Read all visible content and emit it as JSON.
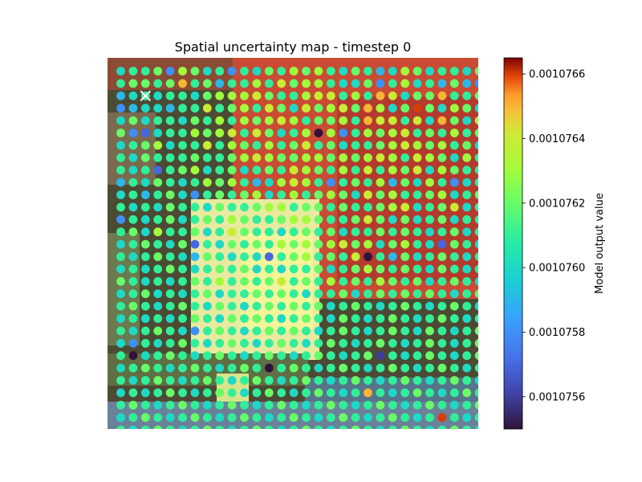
{
  "chart_data": {
    "type": "scatter",
    "title": "Spatial uncertainty map - timestep 0",
    "xlabel": "",
    "ylabel": "",
    "grid": false,
    "axes_visible": false,
    "background": "aerial image",
    "marker": {
      "shape": "circle",
      "colormap": "turbo"
    },
    "grid_points": {
      "rows": 30,
      "cols": 30,
      "x_range": [
        0,
        29
      ],
      "y_range": [
        0,
        29
      ]
    },
    "highlight_marker": {
      "shape": "x",
      "color": "#ffffff",
      "col": 2,
      "row": 2
    },
    "colorbar": {
      "label": "Model output value",
      "vmin": 0.0010755,
      "vmax": 0.00107665,
      "ticks": [
        0.0010756,
        0.0010758,
        0.001076,
        0.0010762,
        0.0010764,
        0.0010766
      ],
      "tick_labels": [
        "0.0010756",
        "0.0010758",
        "0.0010760",
        "0.0010762",
        "0.0010764",
        "0.0010766"
      ]
    },
    "value_rows": [
      [
        0.001076,
        0.0010761,
        0.0010761,
        0.0010762,
        0.0010758,
        0.0010763,
        0.0010762,
        0.001076,
        0.0010761,
        0.0010758,
        0.0010761,
        0.001076,
        0.0010762,
        0.0010761,
        0.0010763,
        0.0010762,
        0.0010763,
        0.0010761,
        0.001076,
        0.0010762,
        0.0010761,
        0.0010759,
        0.001076,
        0.0010763,
        0.0010762,
        0.001076,
        0.0010761,
        0.0010761,
        0.001076,
        0.0010762
      ],
      [
        0.0010761,
        0.0010762,
        0.0010762,
        0.0010761,
        0.0010762,
        0.0010765,
        0.0010761,
        0.0010762,
        0.0010759,
        0.0010761,
        0.0010761,
        0.0010763,
        0.0010761,
        0.0010764,
        0.0010762,
        0.0010763,
        0.0010763,
        0.0010761,
        0.001076,
        0.001076,
        0.0010762,
        0.0010758,
        0.0010761,
        0.0010763,
        0.001076,
        0.0010761,
        0.0010759,
        0.0010762,
        0.0010759,
        0.0010758
      ],
      [
        0.0010759,
        0.001076,
        0.0010761,
        0.001076,
        0.0010761,
        0.0010761,
        0.001076,
        0.0010762,
        0.0010763,
        0.0010763,
        0.0010763,
        0.0010764,
        0.0010762,
        0.0010761,
        0.0010761,
        0.0010763,
        0.0010764,
        0.0010764,
        0.0010761,
        0.0010763,
        0.0010761,
        0.0010765,
        0.0010764,
        0.001076,
        0.0010762,
        0.0010762,
        0.0010765,
        0.0010761,
        0.0010761,
        0.0010762
      ],
      [
        0.0010758,
        0.0010759,
        0.001076,
        0.001076,
        0.0010759,
        0.0010761,
        0.0010761,
        0.0010764,
        0.0010761,
        0.0010762,
        0.0010763,
        0.0010761,
        0.0010764,
        0.0010762,
        0.001076,
        0.0010764,
        0.0010762,
        0.0010763,
        0.0010764,
        0.0010762,
        0.0010765,
        0.0010763,
        0.001076,
        0.0010762,
        0.0010766,
        0.0010762,
        0.001076,
        0.0010763,
        0.0010762,
        0.001076
      ],
      [
        0.001076,
        0.0010762,
        0.001076,
        0.0010761,
        0.0010761,
        0.001076,
        0.0010762,
        0.0010761,
        0.0010763,
        0.0010761,
        0.0010763,
        0.0010762,
        0.0010763,
        0.0010764,
        0.0010763,
        0.0010761,
        0.0010762,
        0.0010762,
        0.0010763,
        0.0010761,
        0.0010765,
        0.0010764,
        0.0010764,
        0.0010761,
        0.0010764,
        0.001076,
        0.0010765,
        0.0010762,
        0.001076,
        0.0010763
      ],
      [
        0.0010762,
        0.0010758,
        0.0010757,
        0.001076,
        0.0010761,
        0.0010761,
        0.0010763,
        0.0010762,
        0.0010763,
        0.0010764,
        0.0010761,
        0.0010764,
        0.0010762,
        0.001076,
        0.0010761,
        0.0010763,
        0.0010755,
        0.0010763,
        0.0010758,
        0.0010761,
        0.0010763,
        0.0010762,
        0.0010763,
        0.0010764,
        0.0010761,
        0.0010762,
        0.0010761,
        0.0010763,
        0.0010761,
        0.0010762
      ],
      [
        0.001076,
        0.0010761,
        0.0010762,
        0.0010763,
        0.001076,
        0.0010761,
        0.0010761,
        0.0010764,
        0.0010761,
        0.0010763,
        0.0010762,
        0.0010761,
        0.0010763,
        0.0010761,
        0.0010762,
        0.0010764,
        0.0010761,
        0.0010762,
        0.001076,
        0.0010761,
        0.0010761,
        0.0010762,
        0.0010763,
        0.0010764,
        0.0010763,
        0.0010762,
        0.0010763,
        0.0010761,
        0.0010762,
        0.001076
      ],
      [
        0.0010761,
        0.001076,
        0.0010762,
        0.0010761,
        0.0010761,
        0.0010761,
        0.0010762,
        0.0010761,
        0.0010761,
        0.0010762,
        0.0010763,
        0.0010764,
        0.0010763,
        0.0010762,
        0.0010762,
        0.0010763,
        0.0010763,
        0.0010762,
        0.0010763,
        0.0010762,
        0.0010763,
        0.0010764,
        0.0010763,
        0.0010761,
        0.0010764,
        0.0010763,
        0.0010762,
        0.001076,
        0.0010763,
        0.0010761
      ],
      [
        0.0010761,
        0.001076,
        0.0010761,
        0.0010757,
        0.0010761,
        0.0010762,
        0.0010763,
        0.001076,
        0.0010761,
        0.0010762,
        0.001076,
        0.0010761,
        0.0010762,
        0.0010761,
        0.0010764,
        0.0010763,
        0.0010762,
        0.0010761,
        0.0010763,
        0.0010761,
        0.0010764,
        0.0010761,
        0.0010763,
        0.0010762,
        0.0010764,
        0.001076,
        0.0010763,
        0.0010762,
        0.0010761,
        0.0010761
      ],
      [
        0.0010759,
        0.0010761,
        0.001076,
        0.0010762,
        0.0010761,
        0.001076,
        0.0010761,
        0.0010763,
        0.0010762,
        0.0010763,
        0.0010761,
        0.0010759,
        0.001076,
        0.0010763,
        0.0010764,
        0.0010763,
        0.0010761,
        0.0010758,
        0.0010761,
        0.0010762,
        0.0010761,
        0.0010763,
        0.0010759,
        0.0010762,
        0.001076,
        0.0010763,
        0.0010761,
        0.0010758,
        0.001076,
        0.0010761
      ],
      [
        0.001076,
        0.0010761,
        0.0010759,
        0.0010761,
        0.0010762,
        0.001076,
        0.0010758,
        0.0010761,
        0.0010762,
        0.0010761,
        0.0010762,
        0.0010763,
        0.001076,
        0.0010761,
        0.0010763,
        0.0010761,
        0.0010762,
        0.0010763,
        0.0010762,
        0.001076,
        0.0010764,
        0.0010762,
        0.0010763,
        0.0010761,
        0.0010761,
        0.0010762,
        0.0010763,
        0.001076,
        0.0010761,
        0.0010762
      ],
      [
        0.0010761,
        0.001076,
        0.0010761,
        0.001076,
        0.0010762,
        0.0010761,
        0.0010761,
        0.001076,
        0.0010762,
        0.0010761,
        0.0010761,
        0.0010762,
        0.0010763,
        0.0010763,
        0.0010761,
        0.0010762,
        0.0010762,
        0.0010761,
        0.0010762,
        0.0010761,
        0.0010761,
        0.0010762,
        0.0010763,
        0.0010764,
        0.001076,
        0.0010761,
        0.0010762,
        0.0010764,
        0.001076,
        0.0010761
      ],
      [
        0.0010758,
        0.0010761,
        0.001076,
        0.0010761,
        0.0010762,
        0.001076,
        0.0010761,
        0.0010762,
        0.0010761,
        0.0010763,
        0.0010762,
        0.0010761,
        0.0010761,
        0.0010762,
        0.0010763,
        0.0010763,
        0.0010762,
        0.0010761,
        0.0010761,
        0.0010762,
        0.0010764,
        0.0010762,
        0.001076,
        0.0010762,
        0.001076,
        0.0010761,
        0.0010762,
        0.001076,
        0.0010761,
        0.0010761
      ],
      [
        0.0010761,
        0.0010762,
        0.001076,
        0.0010763,
        0.0010761,
        0.0010761,
        0.0010762,
        0.001076,
        0.0010761,
        0.0010764,
        0.0010762,
        0.0010761,
        0.0010761,
        0.001076,
        0.0010761,
        0.0010762,
        0.0010761,
        0.0010762,
        0.001076,
        0.0010761,
        0.0010761,
        0.0010762,
        0.0010761,
        0.0010762,
        0.0010761,
        0.001076,
        0.0010761,
        0.0010762,
        0.001076,
        0.0010761
      ],
      [
        0.001076,
        0.0010761,
        0.0010762,
        0.0010761,
        0.001076,
        0.0010762,
        0.0010757,
        0.0010761,
        0.001076,
        0.0010762,
        0.0010761,
        0.0010762,
        0.0010761,
        0.0010763,
        0.0010762,
        0.0010763,
        0.0010762,
        0.0010763,
        0.0010764,
        0.0010762,
        0.0010763,
        0.001076,
        0.0010762,
        0.0010763,
        0.0010761,
        0.001076,
        0.0010757,
        0.0010762,
        0.0010761,
        0.001076
      ],
      [
        0.0010761,
        0.001076,
        0.0010761,
        0.0010762,
        0.0010761,
        0.001076,
        0.0010759,
        0.0010762,
        0.0010761,
        0.001076,
        0.0010761,
        0.001076,
        0.0010757,
        0.0010761,
        0.0010762,
        0.0010763,
        0.0010761,
        0.0010762,
        0.0010761,
        0.0010764,
        0.0010755,
        0.0010761,
        0.0010759,
        0.0010762,
        0.001076,
        0.0010761,
        0.0010762,
        0.0010761,
        0.001076,
        0.0010761
      ],
      [
        0.001076,
        0.0010761,
        0.001076,
        0.0010761,
        0.0010762,
        0.0010761,
        0.001076,
        0.0010761,
        0.0010762,
        0.0010761,
        0.0010762,
        0.001076,
        0.0010761,
        0.001076,
        0.0010761,
        0.0010761,
        0.0010762,
        0.001076,
        0.0010761,
        0.0010762,
        0.0010763,
        0.0010762,
        0.0010761,
        0.0010762,
        0.0010761,
        0.001076,
        0.0010762,
        0.0010761,
        0.001076,
        0.0010761
      ],
      [
        0.0010762,
        0.0010761,
        0.001076,
        0.0010761,
        0.001076,
        0.0010761,
        0.0010762,
        0.0010761,
        0.0010763,
        0.0010761,
        0.0010762,
        0.0010761,
        0.0010762,
        0.0010764,
        0.0010761,
        0.0010762,
        0.0010761,
        0.0010763,
        0.0010761,
        0.0010762,
        0.0010761,
        0.0010763,
        0.0010762,
        0.0010761,
        0.0010762,
        0.001076,
        0.0010761,
        0.0010762,
        0.0010761,
        0.001076
      ],
      [
        0.001076,
        0.0010761,
        0.0010762,
        0.001076,
        0.0010761,
        0.001076,
        0.0010761,
        0.0010762,
        0.001076,
        0.0010761,
        0.0010761,
        0.0010762,
        0.0010761,
        0.0010762,
        0.0010761,
        0.001076,
        0.0010761,
        0.0010761,
        0.0010762,
        0.001076,
        0.0010761,
        0.0010762,
        0.0010761,
        0.0010762,
        0.0010761,
        0.0010762,
        0.0010761,
        0.001076,
        0.0010761,
        0.0010762
      ],
      [
        0.0010761,
        0.0010762,
        0.0010761,
        0.001076,
        0.0010761,
        0.0010762,
        0.0010761,
        0.001076,
        0.0010762,
        0.0010761,
        0.001076,
        0.0010761,
        0.0010762,
        0.0010761,
        0.0010762,
        0.0010761,
        0.0010762,
        0.001076,
        0.0010761,
        0.0010762,
        0.0010761,
        0.001076,
        0.0010761,
        0.0010762,
        0.0010761,
        0.001076,
        0.0010761,
        0.0010762,
        0.0010761,
        0.001076
      ],
      [
        0.001076,
        0.0010761,
        0.001076,
        0.0010761,
        0.001076,
        0.0010761,
        0.0010762,
        0.0010761,
        0.001076,
        0.0010762,
        0.0010761,
        0.0010762,
        0.0010761,
        0.001076,
        0.0010761,
        0.0010762,
        0.0010761,
        0.001076,
        0.0010762,
        0.0010761,
        0.001076,
        0.0010761,
        0.0010762,
        0.0010761,
        0.001076,
        0.0010761,
        0.0010762,
        0.0010761,
        0.001076,
        0.0010761
      ],
      [
        0.0010761,
        0.001076,
        0.0010761,
        0.0010762,
        0.0010761,
        0.001076,
        0.0010758,
        0.0010761,
        0.0010762,
        0.0010761,
        0.001076,
        0.0010761,
        0.0010762,
        0.0010761,
        0.0010762,
        0.0010761,
        0.001076,
        0.0010761,
        0.0010762,
        0.0010761,
        0.001076,
        0.0010761,
        0.0010762,
        0.0010761,
        0.001076,
        0.0010762,
        0.0010761,
        0.001076,
        0.0010761,
        0.0010762
      ],
      [
        0.001076,
        0.0010758,
        0.0010761,
        0.001076,
        0.0010761,
        0.0010762,
        0.0010761,
        0.001076,
        0.0010761,
        0.0010762,
        0.0010761,
        0.001076,
        0.0010761,
        0.0010762,
        0.0010761,
        0.001076,
        0.0010761,
        0.0010762,
        0.0010761,
        0.001076,
        0.0010761,
        0.0010762,
        0.0010761,
        0.001076,
        0.0010761,
        0.0010762,
        0.0010761,
        0.001076,
        0.0010761,
        0.0010762
      ],
      [
        0.0010761,
        0.0010755,
        0.001076,
        0.0010761,
        0.0010762,
        0.0010761,
        0.001076,
        0.0010761,
        0.0010762,
        0.0010761,
        0.001076,
        0.0010761,
        0.0010762,
        0.0010761,
        0.001076,
        0.0010761,
        0.0010762,
        0.0010761,
        0.001076,
        0.0010761,
        0.0010762,
        0.0010756,
        0.0010761,
        0.001076,
        0.0010761,
        0.0010762,
        0.0010761,
        0.001076,
        0.0010761,
        0.0010762
      ],
      [
        0.001076,
        0.0010761,
        0.0010762,
        0.0010761,
        0.001076,
        0.0010761,
        0.0010762,
        0.0010761,
        0.001076,
        0.0010761,
        0.0010762,
        0.0010761,
        0.0010755,
        0.0010761,
        0.0010762,
        0.0010761,
        0.001076,
        0.0010761,
        0.0010762,
        0.0010761,
        0.001076,
        0.0010761,
        0.0010762,
        0.0010761,
        0.001076,
        0.0010761,
        0.0010762,
        0.0010761,
        0.001076,
        0.0010761
      ],
      [
        0.0010761,
        0.001076,
        0.0010761,
        0.0010762,
        0.0010761,
        0.001076,
        0.0010761,
        0.0010762,
        0.0010761,
        0.001076,
        0.0010761,
        0.0010762,
        0.0010761,
        0.001076,
        0.0010761,
        0.0010762,
        0.0010761,
        0.001076,
        0.0010761,
        0.0010762,
        0.0010761,
        0.001076,
        0.0010761,
        0.0010762,
        0.0010761,
        0.001076,
        0.0010761,
        0.0010762,
        0.0010761,
        0.001076
      ],
      [
        0.001076,
        0.0010761,
        0.001076,
        0.0010761,
        0.0010762,
        0.0010761,
        0.001076,
        0.0010761,
        0.0010762,
        0.0010761,
        0.001076,
        0.0010761,
        0.0010762,
        0.0010761,
        0.001076,
        0.0010761,
        0.0010762,
        0.0010761,
        0.001076,
        0.0010761,
        0.0010765,
        0.0010761,
        0.001076,
        0.0010761,
        0.0010762,
        0.0010761,
        0.001076,
        0.0010761,
        0.0010762,
        0.0010761
      ],
      [
        0.0010761,
        0.0010762,
        0.0010761,
        0.001076,
        0.0010761,
        0.0010762,
        0.0010761,
        0.001076,
        0.0010761,
        0.0010762,
        0.0010761,
        0.001076,
        0.0010761,
        0.0010762,
        0.0010761,
        0.001076,
        0.0010761,
        0.0010762,
        0.0010761,
        0.001076,
        0.0010761,
        0.0010762,
        0.0010761,
        0.001076,
        0.0010761,
        0.0010762,
        0.0010761,
        0.001076,
        0.0010761,
        0.0010762
      ],
      [
        0.001076,
        0.0010761,
        0.0010762,
        0.0010761,
        0.001076,
        0.0010761,
        0.0010762,
        0.0010761,
        0.001076,
        0.0010761,
        0.0010762,
        0.0010761,
        0.001076,
        0.0010761,
        0.0010762,
        0.0010761,
        0.001076,
        0.0010761,
        0.0010762,
        0.0010761,
        0.001076,
        0.0010761,
        0.0010762,
        0.0010761,
        0.001076,
        0.0010761,
        0.0010766,
        0.0010761,
        0.001076,
        0.0010761
      ],
      [
        0.0010761,
        0.001076,
        0.0010761,
        0.0010762,
        0.0010761,
        0.001076,
        0.0010761,
        0.0010762,
        0.0010761,
        0.001076,
        0.0010761,
        0.0010762,
        0.0010761,
        0.001076,
        0.0010761,
        0.0010762,
        0.0010761,
        0.001076,
        0.0010761,
        0.0010762,
        0.0010761,
        0.001076,
        0.0010761,
        0.0010762,
        0.0010761,
        0.001076,
        0.0010761,
        0.0010762,
        0.0010761,
        0.001076
      ]
    ]
  }
}
